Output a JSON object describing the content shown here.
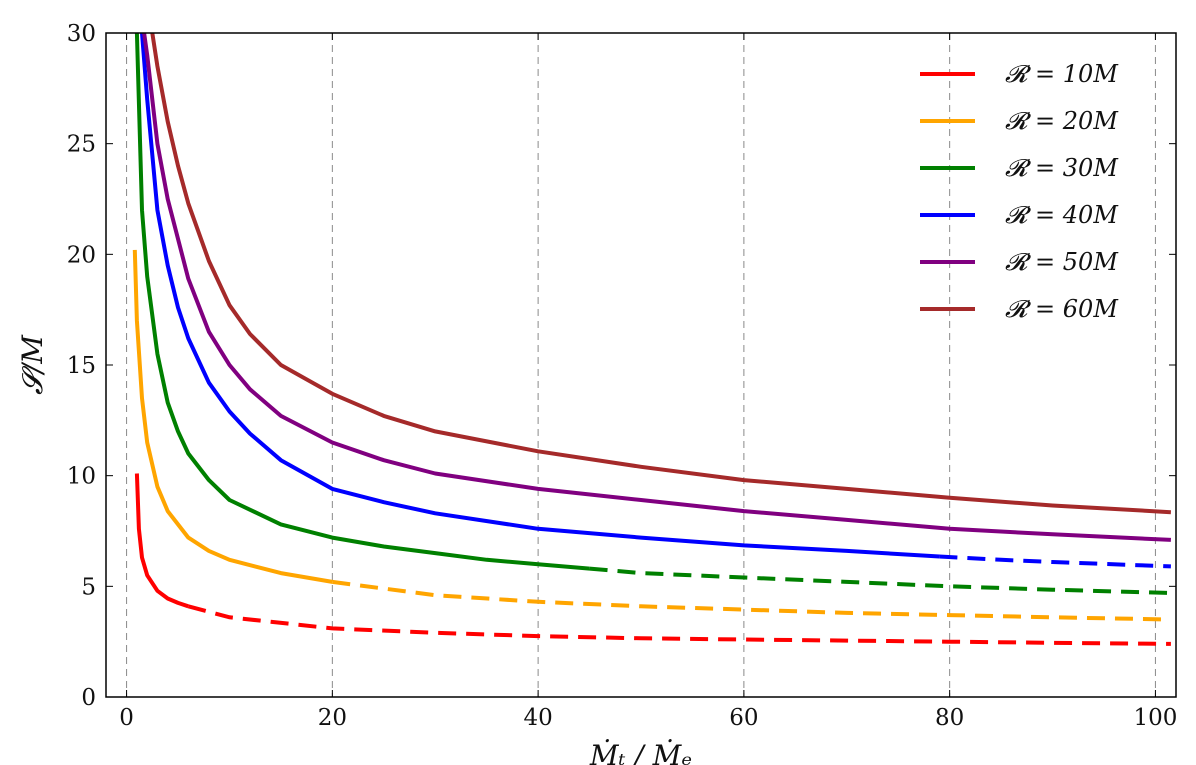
{
  "chart_data": {
    "type": "line",
    "xlabel": "Ṁₜ / Ṁₑ",
    "ylabel": "𝓢/M",
    "xlim": [
      -2,
      102
    ],
    "ylim": [
      0,
      30
    ],
    "xticks": [
      0,
      20,
      40,
      60,
      80,
      100
    ],
    "yticks": [
      0,
      5,
      10,
      15,
      20,
      25,
      30
    ],
    "xtick_labels": [
      "0",
      "20",
      "40",
      "60",
      "80",
      "100"
    ],
    "ytick_labels": [
      "0",
      "5",
      "10",
      "15",
      "20",
      "25",
      "30"
    ],
    "grid": "vertical dashed",
    "legend_position": "top-right",
    "series": [
      {
        "name": "𝓡 = 10M",
        "color": "#ff0000",
        "solid": [
          [
            1,
            10.1
          ],
          [
            1.2,
            7.6
          ],
          [
            1.5,
            6.3
          ],
          [
            2,
            5.5
          ],
          [
            3,
            4.8
          ],
          [
            4,
            4.45
          ],
          [
            5,
            4.25
          ],
          [
            6,
            4.1
          ]
        ],
        "dashed": [
          [
            6,
            4.1
          ],
          [
            10,
            3.6
          ],
          [
            20,
            3.1
          ],
          [
            30,
            2.9
          ],
          [
            40,
            2.75
          ],
          [
            50,
            2.65
          ],
          [
            60,
            2.6
          ],
          [
            70,
            2.55
          ],
          [
            80,
            2.5
          ],
          [
            90,
            2.45
          ],
          [
            101.5,
            2.4
          ]
        ]
      },
      {
        "name": "𝓡 = 20M",
        "color": "#ffa500",
        "solid": [
          [
            0.8,
            20.2
          ],
          [
            1,
            17
          ],
          [
            1.5,
            13.5
          ],
          [
            2,
            11.5
          ],
          [
            3,
            9.5
          ],
          [
            4,
            8.4
          ],
          [
            6,
            7.2
          ],
          [
            8,
            6.6
          ],
          [
            10,
            6.2
          ],
          [
            15,
            5.6
          ],
          [
            20,
            5.2
          ]
        ],
        "dashed": [
          [
            20,
            5.2
          ],
          [
            30,
            4.6
          ],
          [
            40,
            4.3
          ],
          [
            50,
            4.1
          ],
          [
            60,
            3.95
          ],
          [
            70,
            3.8
          ],
          [
            80,
            3.7
          ],
          [
            90,
            3.6
          ],
          [
            101.5,
            3.5
          ]
        ]
      },
      {
        "name": "𝓡 = 30M",
        "color": "#008000",
        "solid": [
          [
            1,
            30
          ],
          [
            1.5,
            22
          ],
          [
            2,
            19
          ],
          [
            3,
            15.5
          ],
          [
            4,
            13.3
          ],
          [
            5,
            12
          ],
          [
            6,
            11
          ],
          [
            8,
            9.8
          ],
          [
            10,
            8.9
          ],
          [
            15,
            7.8
          ],
          [
            20,
            7.2
          ],
          [
            25,
            6.8
          ],
          [
            30,
            6.5
          ],
          [
            35,
            6.2
          ],
          [
            40,
            6
          ],
          [
            45,
            5.8
          ]
        ],
        "dashed": [
          [
            45,
            5.8
          ],
          [
            50,
            5.6
          ],
          [
            60,
            5.4
          ],
          [
            70,
            5.2
          ],
          [
            80,
            5
          ],
          [
            90,
            4.85
          ],
          [
            101.5,
            4.7
          ]
        ]
      },
      {
        "name": "𝓡 = 40M",
        "color": "#0000ff",
        "solid": [
          [
            1.5,
            30
          ],
          [
            2,
            27
          ],
          [
            3,
            22
          ],
          [
            4,
            19.5
          ],
          [
            5,
            17.6
          ],
          [
            6,
            16.2
          ],
          [
            8,
            14.2
          ],
          [
            10,
            12.9
          ],
          [
            12,
            11.9
          ],
          [
            15,
            10.7
          ],
          [
            20,
            9.4
          ],
          [
            25,
            8.8
          ],
          [
            30,
            8.3
          ],
          [
            40,
            7.6
          ],
          [
            50,
            7.2
          ],
          [
            60,
            6.85
          ],
          [
            70,
            6.6
          ],
          [
            79,
            6.35
          ]
        ],
        "dashed": [
          [
            79,
            6.35
          ],
          [
            85,
            6.2
          ],
          [
            90,
            6.1
          ],
          [
            101.5,
            5.9
          ]
        ]
      },
      {
        "name": "𝓡 = 50M",
        "color": "#800080",
        "solid": [
          [
            1.7,
            30
          ],
          [
            2,
            29
          ],
          [
            3,
            25
          ],
          [
            4,
            22.5
          ],
          [
            6,
            18.9
          ],
          [
            8,
            16.5
          ],
          [
            10,
            15
          ],
          [
            12,
            13.9
          ],
          [
            15,
            12.7
          ],
          [
            20,
            11.5
          ],
          [
            25,
            10.7
          ],
          [
            30,
            10.1
          ],
          [
            40,
            9.4
          ],
          [
            50,
            8.9
          ],
          [
            60,
            8.4
          ],
          [
            70,
            8
          ],
          [
            80,
            7.6
          ],
          [
            90,
            7.35
          ],
          [
            101.5,
            7.1
          ]
        ],
        "dashed": []
      },
      {
        "name": "𝓡 = 60M",
        "color": "#a52a2a",
        "solid": [
          [
            2.5,
            30
          ],
          [
            3,
            28.5
          ],
          [
            4,
            26
          ],
          [
            5,
            24
          ],
          [
            6,
            22.3
          ],
          [
            8,
            19.7
          ],
          [
            10,
            17.7
          ],
          [
            12,
            16.4
          ],
          [
            15,
            15
          ],
          [
            20,
            13.7
          ],
          [
            25,
            12.7
          ],
          [
            30,
            12
          ],
          [
            40,
            11.1
          ],
          [
            50,
            10.4
          ],
          [
            60,
            9.8
          ],
          [
            70,
            9.4
          ],
          [
            80,
            9
          ],
          [
            90,
            8.65
          ],
          [
            101.5,
            8.35
          ]
        ],
        "dashed": []
      }
    ]
  }
}
